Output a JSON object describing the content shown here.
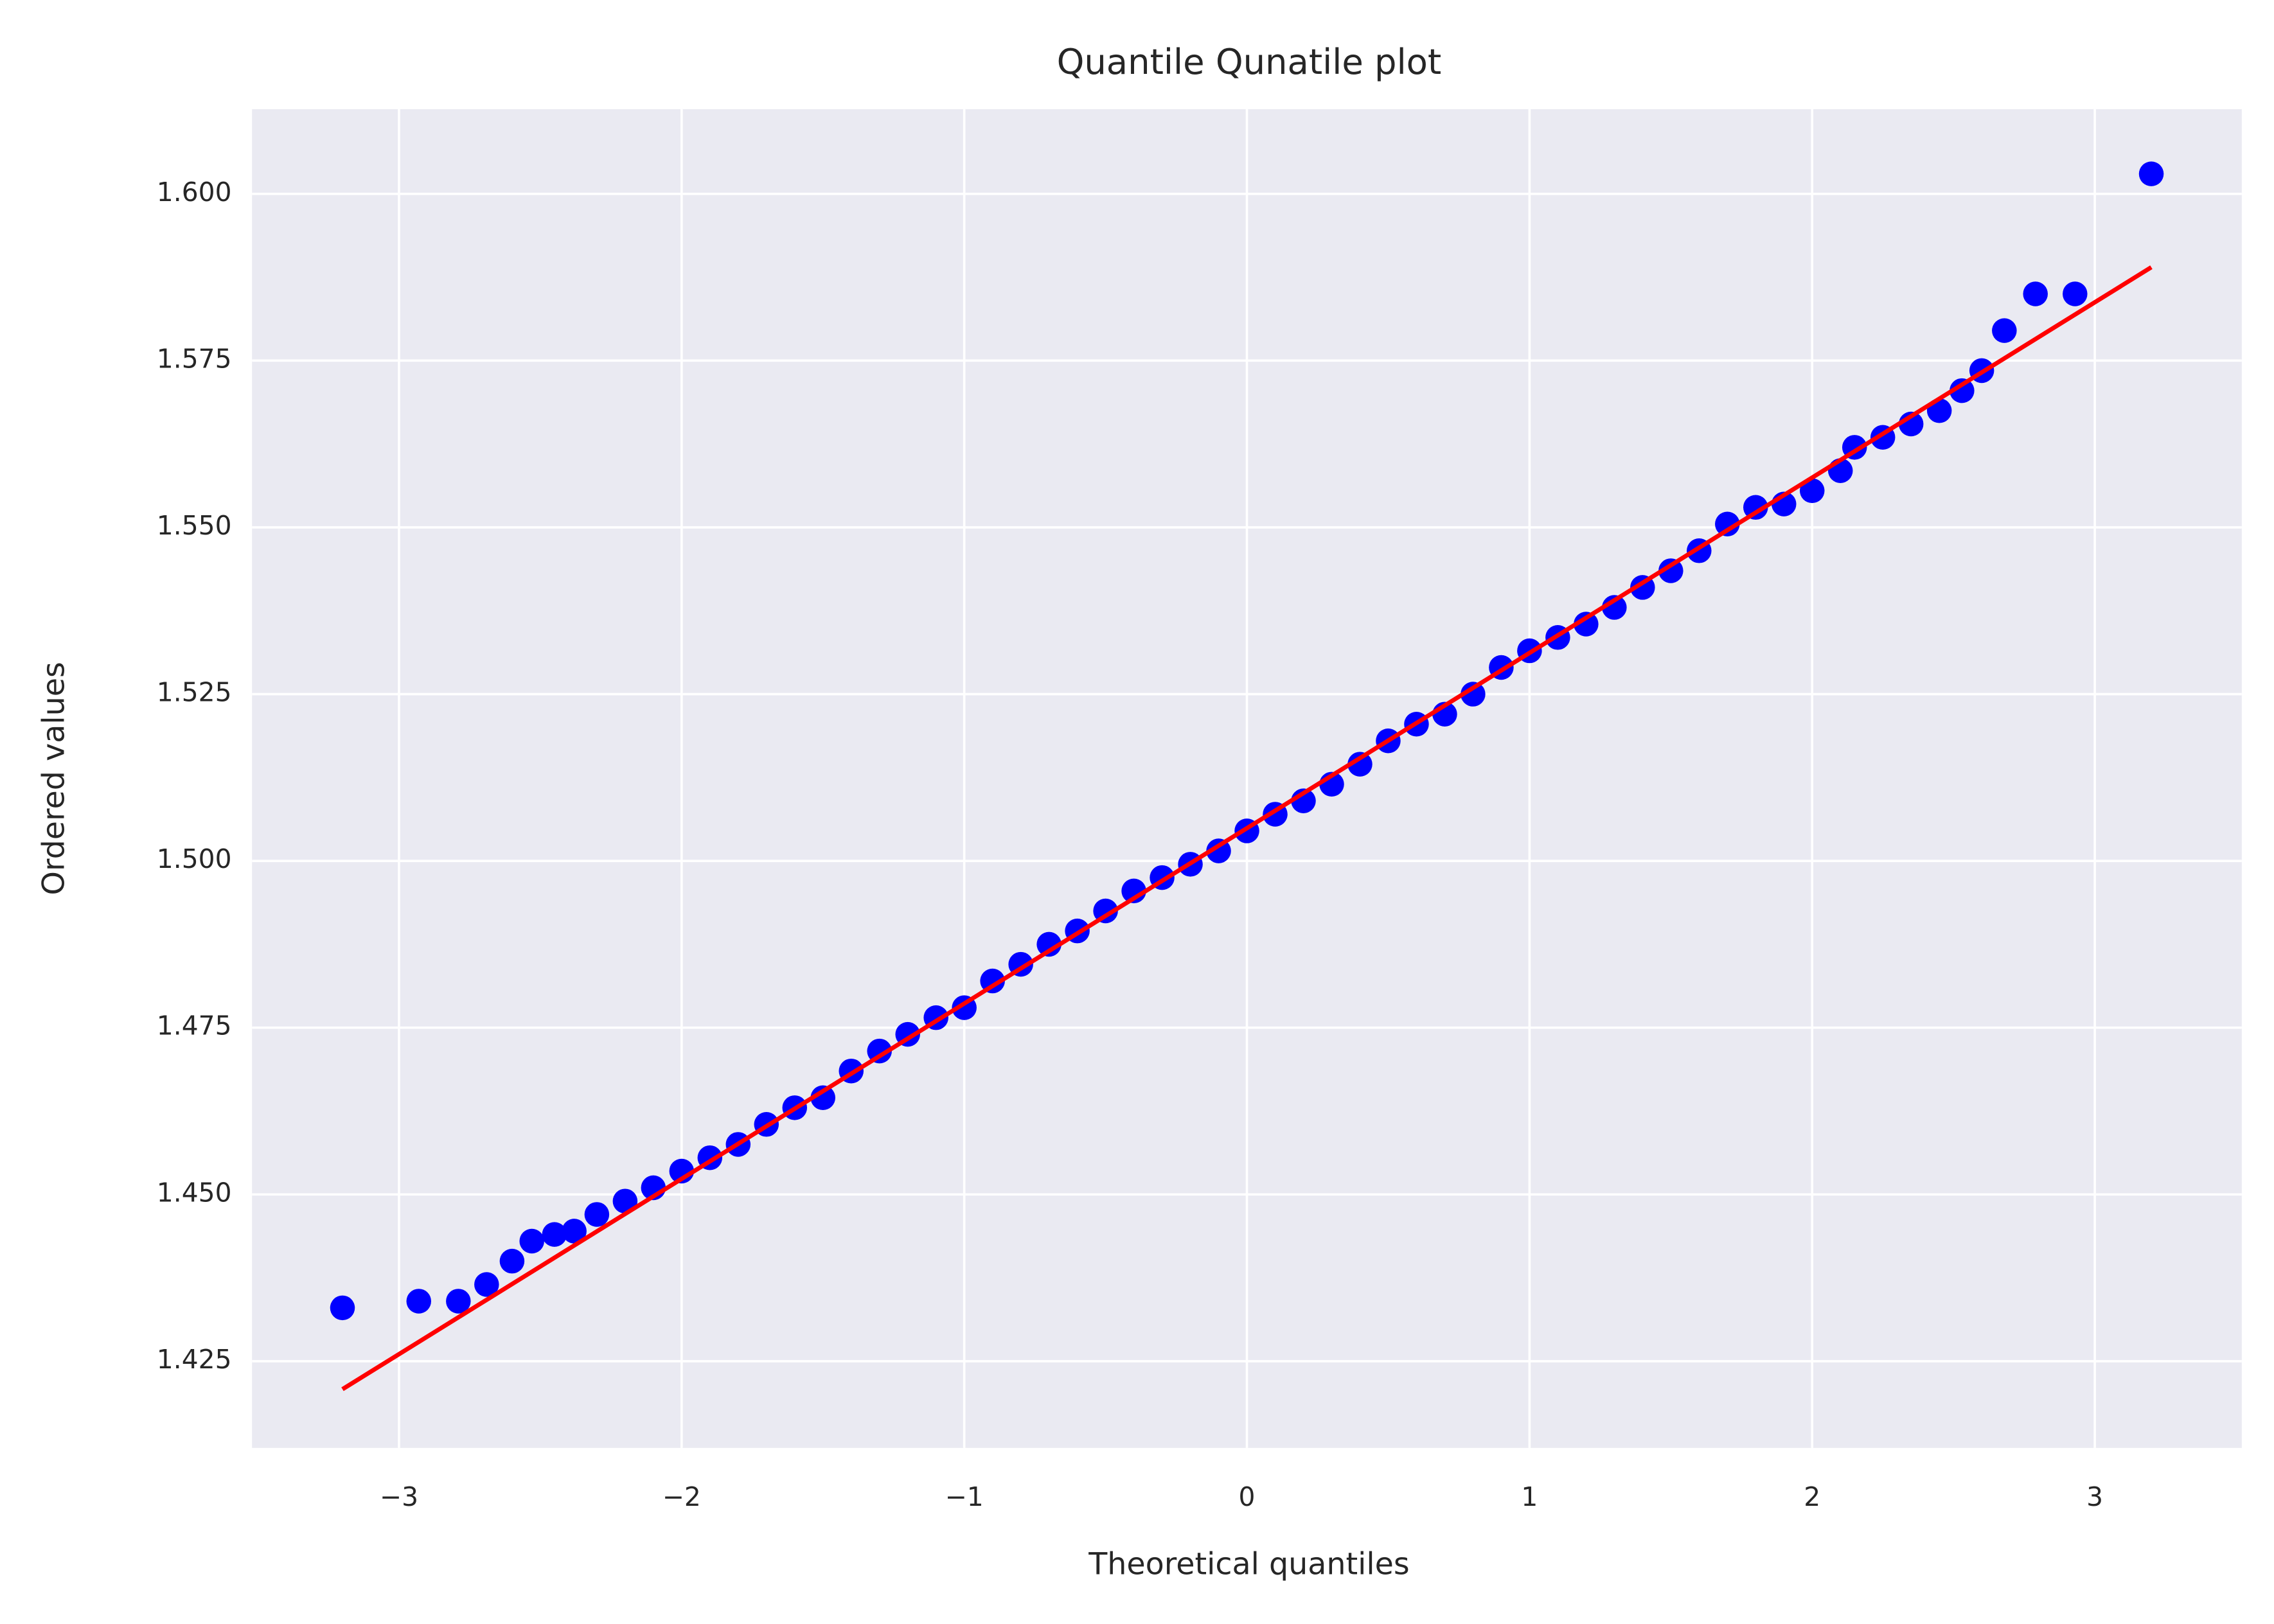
{
  "chart_data": {
    "type": "scatter",
    "title": "Quantile Qunatile plot",
    "x_label": "Theoretical quantiles",
    "y_label": "Ordered values",
    "xlim": [
      -3.52,
      3.52
    ],
    "ylim": [
      1.412,
      1.6127
    ],
    "xticks": [
      {
        "value": -3,
        "label": "−3"
      },
      {
        "value": -2,
        "label": "−2"
      },
      {
        "value": -1,
        "label": "−1"
      },
      0,
      1,
      2,
      3
    ],
    "yticks": [
      1.425,
      {
        "value": 1.45,
        "label": "1.450"
      },
      1.475,
      {
        "value": 1.5,
        "label": "1.500"
      },
      1.525,
      {
        "value": 1.55,
        "label": "1.550"
      },
      1.575,
      {
        "value": 1.6,
        "label": "1.600"
      }
    ],
    "grid": true,
    "series": [
      {
        "type": "scatter",
        "color": "#0000ff",
        "x": [
          -3.2,
          -2.93,
          -2.79,
          -2.69,
          -2.6,
          -2.53,
          -2.45,
          -2.38,
          -2.3,
          -2.2,
          -2.1,
          -2.0,
          -1.9,
          -1.8,
          -1.7,
          -1.6,
          -1.5,
          -1.4,
          -1.3,
          -1.2,
          -1.1,
          -1.0,
          -0.9,
          -0.8,
          -0.7,
          -0.6,
          -0.5,
          -0.4,
          -0.3,
          -0.2,
          -0.1,
          0,
          0.1,
          0.2,
          0.3,
          0.4,
          0.5,
          0.6,
          0.7,
          0.8,
          0.9,
          1.0,
          1.1,
          1.2,
          1.3,
          1.4,
          1.5,
          1.6,
          1.7,
          1.8,
          1.9,
          2.0,
          2.1,
          2.15,
          2.25,
          2.35,
          2.45,
          2.53,
          2.6,
          2.68,
          2.79,
          2.93,
          3.2
        ],
        "values": [
          1.433,
          1.434,
          1.434,
          1.4365,
          1.44,
          1.443,
          1.444,
          1.4445,
          1.447,
          1.449,
          1.451,
          1.4535,
          1.4555,
          1.4575,
          1.4605,
          1.463,
          1.4645,
          1.4685,
          1.4715,
          1.474,
          1.4765,
          1.478,
          1.482,
          1.4845,
          1.4875,
          1.4895,
          1.4925,
          1.4955,
          1.4975,
          1.4995,
          1.5015,
          1.5045,
          1.507,
          1.509,
          1.5115,
          1.5145,
          1.518,
          1.5205,
          1.522,
          1.525,
          1.529,
          1.5315,
          1.5335,
          1.5355,
          1.538,
          1.541,
          1.5435,
          1.5465,
          1.5505,
          1.553,
          1.5535,
          1.5555,
          1.5585,
          1.562,
          1.5635,
          1.5655,
          1.5675,
          1.5705,
          1.5735,
          1.5795,
          1.585,
          1.585,
          1.603
        ]
      },
      {
        "type": "line",
        "color": "#ff0000",
        "x": [
          -3.2,
          3.2
        ],
        "values": [
          1.4208,
          1.589
        ]
      }
    ]
  }
}
